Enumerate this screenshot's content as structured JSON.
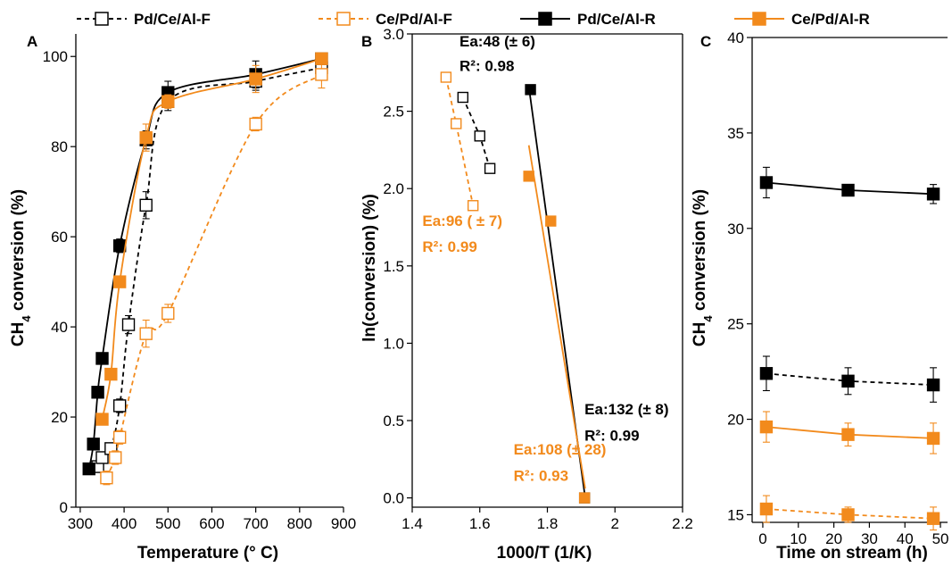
{
  "colors": {
    "black": "#000000",
    "orange": "#F28A1C"
  },
  "legend": [
    {
      "label": "Pd/Ce/Al-F",
      "color": "#000000",
      "filled": false,
      "dashed": true
    },
    {
      "label": "Ce/Pd/Al-F",
      "color": "#F28A1C",
      "filled": false,
      "dashed": true
    },
    {
      "label": "Pd/Ce/Al-R",
      "color": "#000000",
      "filled": true,
      "dashed": false
    },
    {
      "label": "Ce/Pd/Al-R",
      "color": "#F28A1C",
      "filled": true,
      "dashed": false
    }
  ],
  "chart_data": [
    {
      "type": "scatter",
      "panel": "A",
      "xlabel": "Temperature (° C)",
      "ylabel": "CH4 conversion (%)",
      "xlim": [
        290,
        900
      ],
      "ylim": [
        0,
        105
      ],
      "xticks": [
        300,
        400,
        500,
        600,
        700,
        800,
        900
      ],
      "yticks": [
        0,
        20,
        40,
        60,
        80,
        100
      ],
      "series": [
        {
          "name": "Pd/Ce/Al-F",
          "color": "#000000",
          "filled": false,
          "dashed": true,
          "x": [
            340,
            350,
            370,
            390,
            410,
            450,
            500,
            700,
            850
          ],
          "y": [
            9,
            11,
            13,
            22.5,
            40.5,
            67,
            90,
            94.5,
            97.5
          ],
          "err": [
            1,
            1,
            1,
            1.5,
            2,
            3,
            2,
            2,
            2
          ]
        },
        {
          "name": "Ce/Pd/Al-F",
          "color": "#F28A1C",
          "filled": false,
          "dashed": true,
          "x": [
            360,
            380,
            390,
            450,
            500,
            700,
            850
          ],
          "y": [
            6.5,
            11,
            15.5,
            38.5,
            43,
            85,
            96
          ],
          "err": [
            1.5,
            1.5,
            1.5,
            3,
            2,
            1.5,
            3
          ]
        },
        {
          "name": "Pd/Ce/Al-R",
          "color": "#000000",
          "filled": true,
          "dashed": false,
          "x": [
            320,
            330,
            340,
            350,
            390,
            450,
            500,
            700,
            850
          ],
          "y": [
            8.5,
            14,
            25.5,
            33,
            58,
            81.5,
            92,
            96,
            99.5
          ],
          "err": [
            0.5,
            0.5,
            0.5,
            0.5,
            1.5,
            2,
            2.5,
            3,
            1
          ]
        },
        {
          "name": "Ce/Pd/Al-R",
          "color": "#F28A1C",
          "filled": true,
          "dashed": false,
          "x": [
            350,
            370,
            390,
            450,
            500,
            700,
            850
          ],
          "y": [
            19.5,
            29.5,
            50,
            82,
            90,
            95,
            99.5
          ],
          "err": [
            1,
            1,
            1,
            3,
            1.5,
            3,
            1
          ]
        }
      ]
    },
    {
      "type": "scatter",
      "panel": "B",
      "xlabel": "1000/T (1/K)",
      "ylabel": "ln(conversion) (%)",
      "xlim": [
        1.4,
        2.2
      ],
      "ylim": [
        -0.06,
        3.0
      ],
      "xticks": [
        1.4,
        1.6,
        1.8,
        2.0,
        2.2
      ],
      "yticks": [
        0.0,
        0.5,
        1.0,
        1.5,
        2.0,
        2.5,
        3.0
      ],
      "series": [
        {
          "name": "Pd/Ce/Al-F",
          "color": "#000000",
          "filled": false,
          "dashed": true,
          "x": [
            1.55,
            1.6,
            1.63
          ],
          "y": [
            2.59,
            2.34,
            2.13
          ]
        },
        {
          "name": "Ce/Pd/Al-F",
          "color": "#F28A1C",
          "filled": false,
          "dashed": true,
          "x": [
            1.5,
            1.53,
            1.58
          ],
          "y": [
            2.72,
            2.42,
            1.89
          ]
        },
        {
          "name": "Pd/Ce/Al-R",
          "color": "#000000",
          "filled": true,
          "dashed": false,
          "x": [
            1.75,
            1.91
          ],
          "y": [
            2.64,
            0.0
          ],
          "fit": [
            [
              1.745,
              2.66
            ],
            [
              1.912,
              0.0
            ]
          ]
        },
        {
          "name": "Ce/Pd/Al-R",
          "color": "#F28A1C",
          "filled": true,
          "dashed": false,
          "x": [
            1.745,
            1.81,
            1.91
          ],
          "y": [
            2.08,
            1.79,
            0.0
          ],
          "fit": [
            [
              1.745,
              2.28
            ],
            [
              1.912,
              0.06
            ]
          ]
        }
      ],
      "annotations": [
        {
          "text": "Ea:48 (± 6)",
          "color": "#000000",
          "x": 1.54,
          "y": 2.92
        },
        {
          "text": "R²: 0.98",
          "color": "#000000",
          "x": 1.54,
          "y": 2.76
        },
        {
          "text": "Ea:96 ( ± 7)",
          "color": "#F28A1C",
          "x": 1.43,
          "y": 1.76
        },
        {
          "text": "R²: 0.99",
          "color": "#F28A1C",
          "x": 1.43,
          "y": 1.59
        },
        {
          "text": "Ea:132 (± 8)",
          "color": "#000000",
          "x": 1.91,
          "y": 0.54
        },
        {
          "text": "R²: 0.99",
          "color": "#000000",
          "x": 1.91,
          "y": 0.37
        },
        {
          "text": "Ea:108 (± 28)",
          "color": "#F28A1C",
          "x": 1.7,
          "y": 0.28
        },
        {
          "text": "R²: 0.93",
          "color": "#F28A1C",
          "x": 1.7,
          "y": 0.11
        }
      ]
    },
    {
      "type": "scatter",
      "panel": "C",
      "xlabel": "Time on stream (h)",
      "ylabel": "CH4 conversion (%)",
      "xlim": [
        -3,
        52
      ],
      "ylim": [
        14.6,
        40
      ],
      "xticks": [
        0,
        10,
        20,
        30,
        40,
        50
      ],
      "yticks": [
        15,
        20,
        25,
        30,
        35,
        40
      ],
      "series": [
        {
          "name": "Pd/Ce/Al-R",
          "color": "#000000",
          "filled": true,
          "dashed": false,
          "x": [
            1,
            24,
            48
          ],
          "y": [
            32.4,
            32.0,
            31.8
          ],
          "err": [
            0.8,
            0.3,
            0.5
          ]
        },
        {
          "name": "Pd/Ce/Al-F",
          "color": "#000000",
          "filled": true,
          "dashed": true,
          "x": [
            1,
            24,
            48
          ],
          "y": [
            22.4,
            22.0,
            21.8
          ],
          "err": [
            0.9,
            0.7,
            0.9
          ]
        },
        {
          "name": "Ce/Pd/Al-R",
          "color": "#F28A1C",
          "filled": true,
          "dashed": false,
          "x": [
            1,
            24,
            48
          ],
          "y": [
            19.6,
            19.2,
            19.0
          ],
          "err": [
            0.8,
            0.6,
            0.8
          ]
        },
        {
          "name": "Ce/Pd/Al-F",
          "color": "#F28A1C",
          "filled": true,
          "dashed": true,
          "x": [
            1,
            24,
            48
          ],
          "y": [
            15.3,
            15.0,
            14.8
          ],
          "err": [
            0.7,
            0.4,
            0.6
          ]
        }
      ]
    }
  ]
}
